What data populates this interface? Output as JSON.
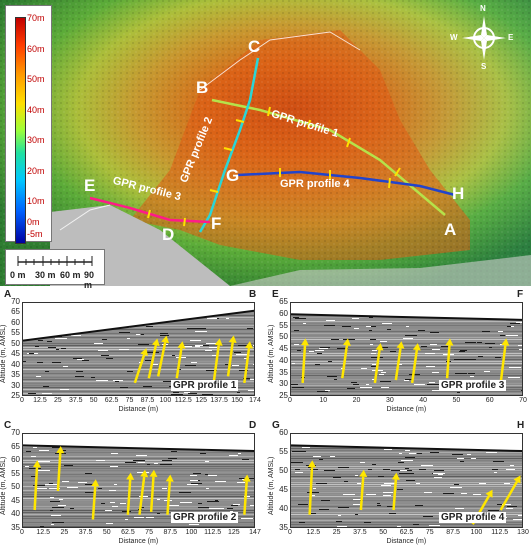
{
  "legend": {
    "labels": [
      "70m",
      "60m",
      "50m",
      "40m",
      "30m",
      "20m",
      "10m",
      "0m",
      "-5m"
    ]
  },
  "scale": {
    "labels": [
      "0 m",
      "30 m",
      "60 m",
      "90 m"
    ]
  },
  "compass": {
    "n": "N",
    "s": "S",
    "e": "E",
    "w": "W"
  },
  "map_points": [
    "A",
    "B",
    "C",
    "D",
    "E",
    "F",
    "G",
    "H"
  ],
  "map_profiles": [
    "GPR profile 1",
    "GPR profile 2",
    "GPR profile 3",
    "GPR profile 4"
  ],
  "panels": [
    {
      "left": "A",
      "right": "B",
      "title": "GPR profile 1",
      "yticks": [
        "70",
        "65",
        "60",
        "55",
        "50",
        "45",
        "40",
        "35",
        "30",
        "25"
      ],
      "xticks": [
        "0",
        "12.5",
        "25",
        "37.5",
        "50",
        "62.5",
        "75",
        "87.5",
        "100",
        "112.5",
        "125",
        "137.5",
        "150",
        "174"
      ],
      "ylabel": "Altitude (m, AMSL)",
      "xlabel": "Distance (m)"
    },
    {
      "left": "E",
      "right": "F",
      "title": "GPR profile 3",
      "yticks": [
        "65",
        "60",
        "55",
        "50",
        "45",
        "40",
        "35",
        "30",
        "25"
      ],
      "xticks": [
        "0",
        "10",
        "20",
        "30",
        "40",
        "50",
        "60",
        "70"
      ],
      "ylabel": "Altitude (m, AMSL)",
      "xlabel": "Distance (m)"
    },
    {
      "left": "C",
      "right": "D",
      "title": "GPR profile 2",
      "yticks": [
        "70",
        "65",
        "60",
        "55",
        "50",
        "45",
        "40",
        "35"
      ],
      "xticks": [
        "0",
        "12.5",
        "25",
        "37.5",
        "50",
        "62.5",
        "75",
        "87.5",
        "100",
        "112.5",
        "125",
        "147"
      ],
      "ylabel": "Altitude (m, AMSL)",
      "xlabel": "Distance (m)"
    },
    {
      "left": "G",
      "right": "H",
      "title": "GPR profile 4",
      "yticks": [
        "60",
        "55",
        "50",
        "45",
        "40",
        "35"
      ],
      "xticks": [
        "0",
        "12.5",
        "25",
        "37.5",
        "50",
        "62.5",
        "75",
        "87.5",
        "100",
        "112.5",
        "130"
      ],
      "ylabel": "Altitude (m, AMSL)",
      "xlabel": "Distance (m)"
    }
  ]
}
